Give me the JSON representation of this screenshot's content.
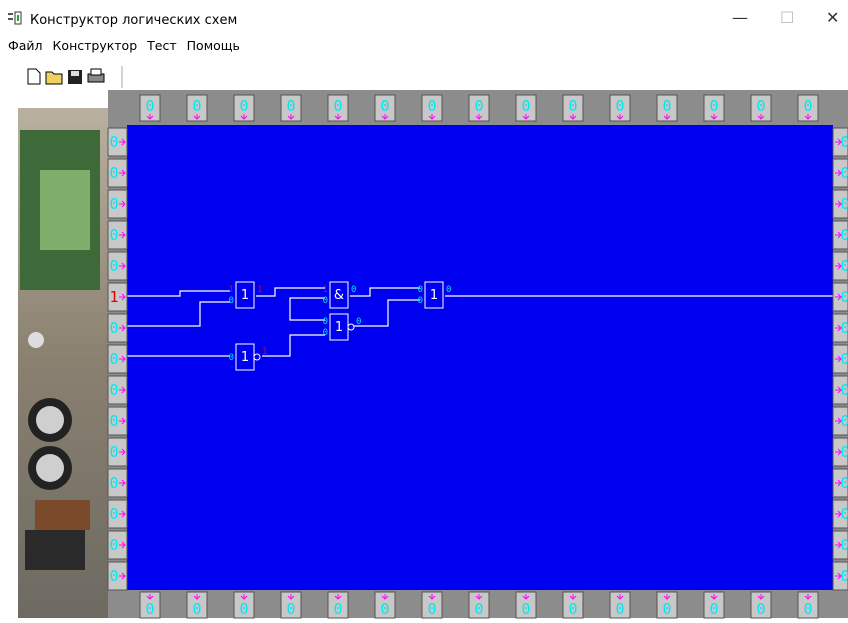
{
  "window": {
    "title": "Конструктор логических схем"
  },
  "menu": [
    "Файл",
    "Конструктор",
    "Тест",
    "Помощь"
  ],
  "top_pins": [
    "0",
    "0",
    "0",
    "0",
    "0",
    "0",
    "0",
    "0",
    "0",
    "0",
    "0",
    "0",
    "0",
    "0",
    "0"
  ],
  "left_pins": [
    "0",
    "0",
    "0",
    "0",
    "0",
    "1",
    "0",
    "0",
    "0",
    "0",
    "0",
    "0",
    "0",
    "0",
    "0"
  ],
  "right_pins": [
    "0",
    "0",
    "0",
    "0",
    "0",
    "0",
    "0",
    "0",
    "0",
    "0",
    "0",
    "0",
    "0",
    "0",
    "0"
  ],
  "bottom_pins": [
    "0",
    "0",
    "0",
    "0",
    "0",
    "0",
    "0",
    "0",
    "0",
    "0",
    "0",
    "0",
    "0",
    "0",
    "0"
  ],
  "gates": [
    {
      "label": "1",
      "inputs": [
        "1",
        "0"
      ],
      "output": "1"
    },
    {
      "label": "&",
      "inputs": [
        "1",
        "0"
      ],
      "output": "0"
    },
    {
      "label": "1",
      "inputs": [
        "0",
        "0"
      ],
      "output": "0"
    },
    {
      "label": "1",
      "inputs": [
        "0"
      ],
      "output": "1"
    },
    {
      "label": "1",
      "inputs": [
        "0",
        "0"
      ],
      "output": "0"
    }
  ]
}
